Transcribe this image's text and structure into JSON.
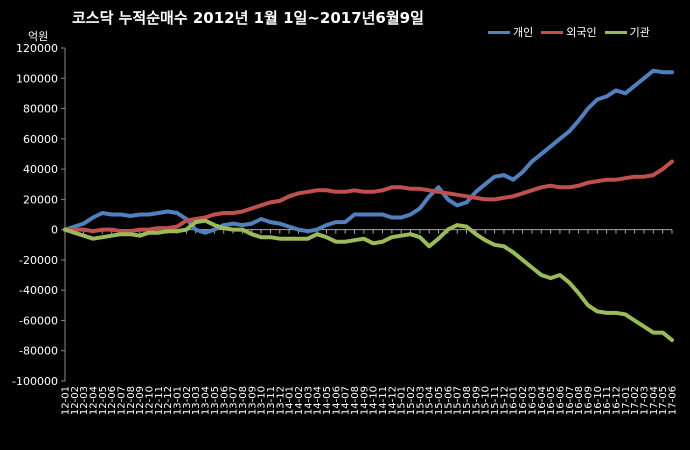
{
  "chart_data": {
    "type": "line",
    "title": "코스닥  누적순매수 2012년 1월 1일~2017년6월9일",
    "ylabel": "억원",
    "xlabel": "",
    "ylim": [
      -100000,
      120000
    ],
    "yticks": [
      120000,
      100000,
      80000,
      60000,
      40000,
      20000,
      0,
      -20000,
      -40000,
      -60000,
      -80000,
      -100000
    ],
    "grid": false,
    "legend_position": "top-right",
    "categories": [
      "12-01",
      "12-02",
      "12-03",
      "12-04",
      "12-05",
      "12-06",
      "12-07",
      "12-08",
      "12-09",
      "12-10",
      "12-11",
      "12-12",
      "13-01",
      "13-02",
      "13-03",
      "13-04",
      "13-05",
      "13-06",
      "13-07",
      "13-08",
      "13-09",
      "13-10",
      "13-11",
      "13-12",
      "14-01",
      "14-02",
      "14-03",
      "14-04",
      "14-05",
      "14-06",
      "14-07",
      "14-08",
      "14-09",
      "14-10",
      "14-11",
      "14-12",
      "15-01",
      "15-02",
      "15-03",
      "15-04",
      "15-05",
      "15-06",
      "15-07",
      "15-08",
      "15-09",
      "15-10",
      "15-11",
      "15-12",
      "16-01",
      "16-02",
      "16-03",
      "16-04",
      "16-05",
      "16-06",
      "16-07",
      "16-08",
      "16-09",
      "16-10",
      "16-11",
      "16-12",
      "17-01",
      "17-02",
      "17-03",
      "17-04",
      "17-05",
      "17-06"
    ],
    "series": [
      {
        "name": "개인",
        "color": "#4f81bd",
        "values": [
          0,
          2000,
          4000,
          8000,
          11000,
          10000,
          10000,
          9000,
          10000,
          10000,
          11000,
          12000,
          11000,
          7000,
          0,
          -2000,
          0,
          3000,
          4000,
          3000,
          4000,
          7000,
          5000,
          4000,
          2000,
          0,
          -1000,
          0,
          3000,
          5000,
          5000,
          10000,
          10000,
          10000,
          10000,
          8000,
          8000,
          10000,
          14000,
          22000,
          28000,
          20000,
          16000,
          18000,
          25000,
          30000,
          35000,
          36000,
          33000,
          38000,
          45000,
          50000,
          55000,
          60000,
          65000,
          72000,
          80000,
          86000,
          88000,
          92000,
          90000,
          95000,
          100000,
          105000,
          104000,
          104000
        ]
      },
      {
        "name": "외국인",
        "color": "#c0504d",
        "values": [
          0,
          0,
          0,
          -1000,
          0,
          0,
          -1000,
          -1000,
          0,
          0,
          1000,
          1000,
          2000,
          6000,
          7000,
          8000,
          10000,
          11000,
          11000,
          12000,
          14000,
          16000,
          18000,
          19000,
          22000,
          24000,
          25000,
          26000,
          26000,
          25000,
          25000,
          26000,
          25000,
          25000,
          26000,
          28000,
          28000,
          27000,
          27000,
          26000,
          25000,
          24000,
          23000,
          22000,
          21000,
          20000,
          20000,
          21000,
          22000,
          24000,
          26000,
          28000,
          29000,
          28000,
          28000,
          29000,
          31000,
          32000,
          33000,
          33000,
          34000,
          35000,
          35000,
          36000,
          40000,
          45000
        ]
      },
      {
        "name": "기관",
        "color": "#9bbb59",
        "values": [
          0,
          -2000,
          -4000,
          -6000,
          -5000,
          -4000,
          -3000,
          -3000,
          -4000,
          -2000,
          -2000,
          -1000,
          -1000,
          0,
          5000,
          6000,
          3000,
          1000,
          0,
          0,
          -3000,
          -5000,
          -5000,
          -6000,
          -6000,
          -6000,
          -6000,
          -3000,
          -5000,
          -8000,
          -8000,
          -7000,
          -6000,
          -9000,
          -8000,
          -5000,
          -4000,
          -3000,
          -5000,
          -11000,
          -6000,
          0,
          3000,
          2000,
          -3000,
          -7000,
          -10000,
          -11000,
          -15000,
          -20000,
          -25000,
          -30000,
          -32000,
          -30000,
          -35000,
          -42000,
          -50000,
          -54000,
          -55000,
          -55000,
          -56000,
          -60000,
          -64000,
          -68000,
          -68000,
          -73000
        ]
      }
    ]
  }
}
